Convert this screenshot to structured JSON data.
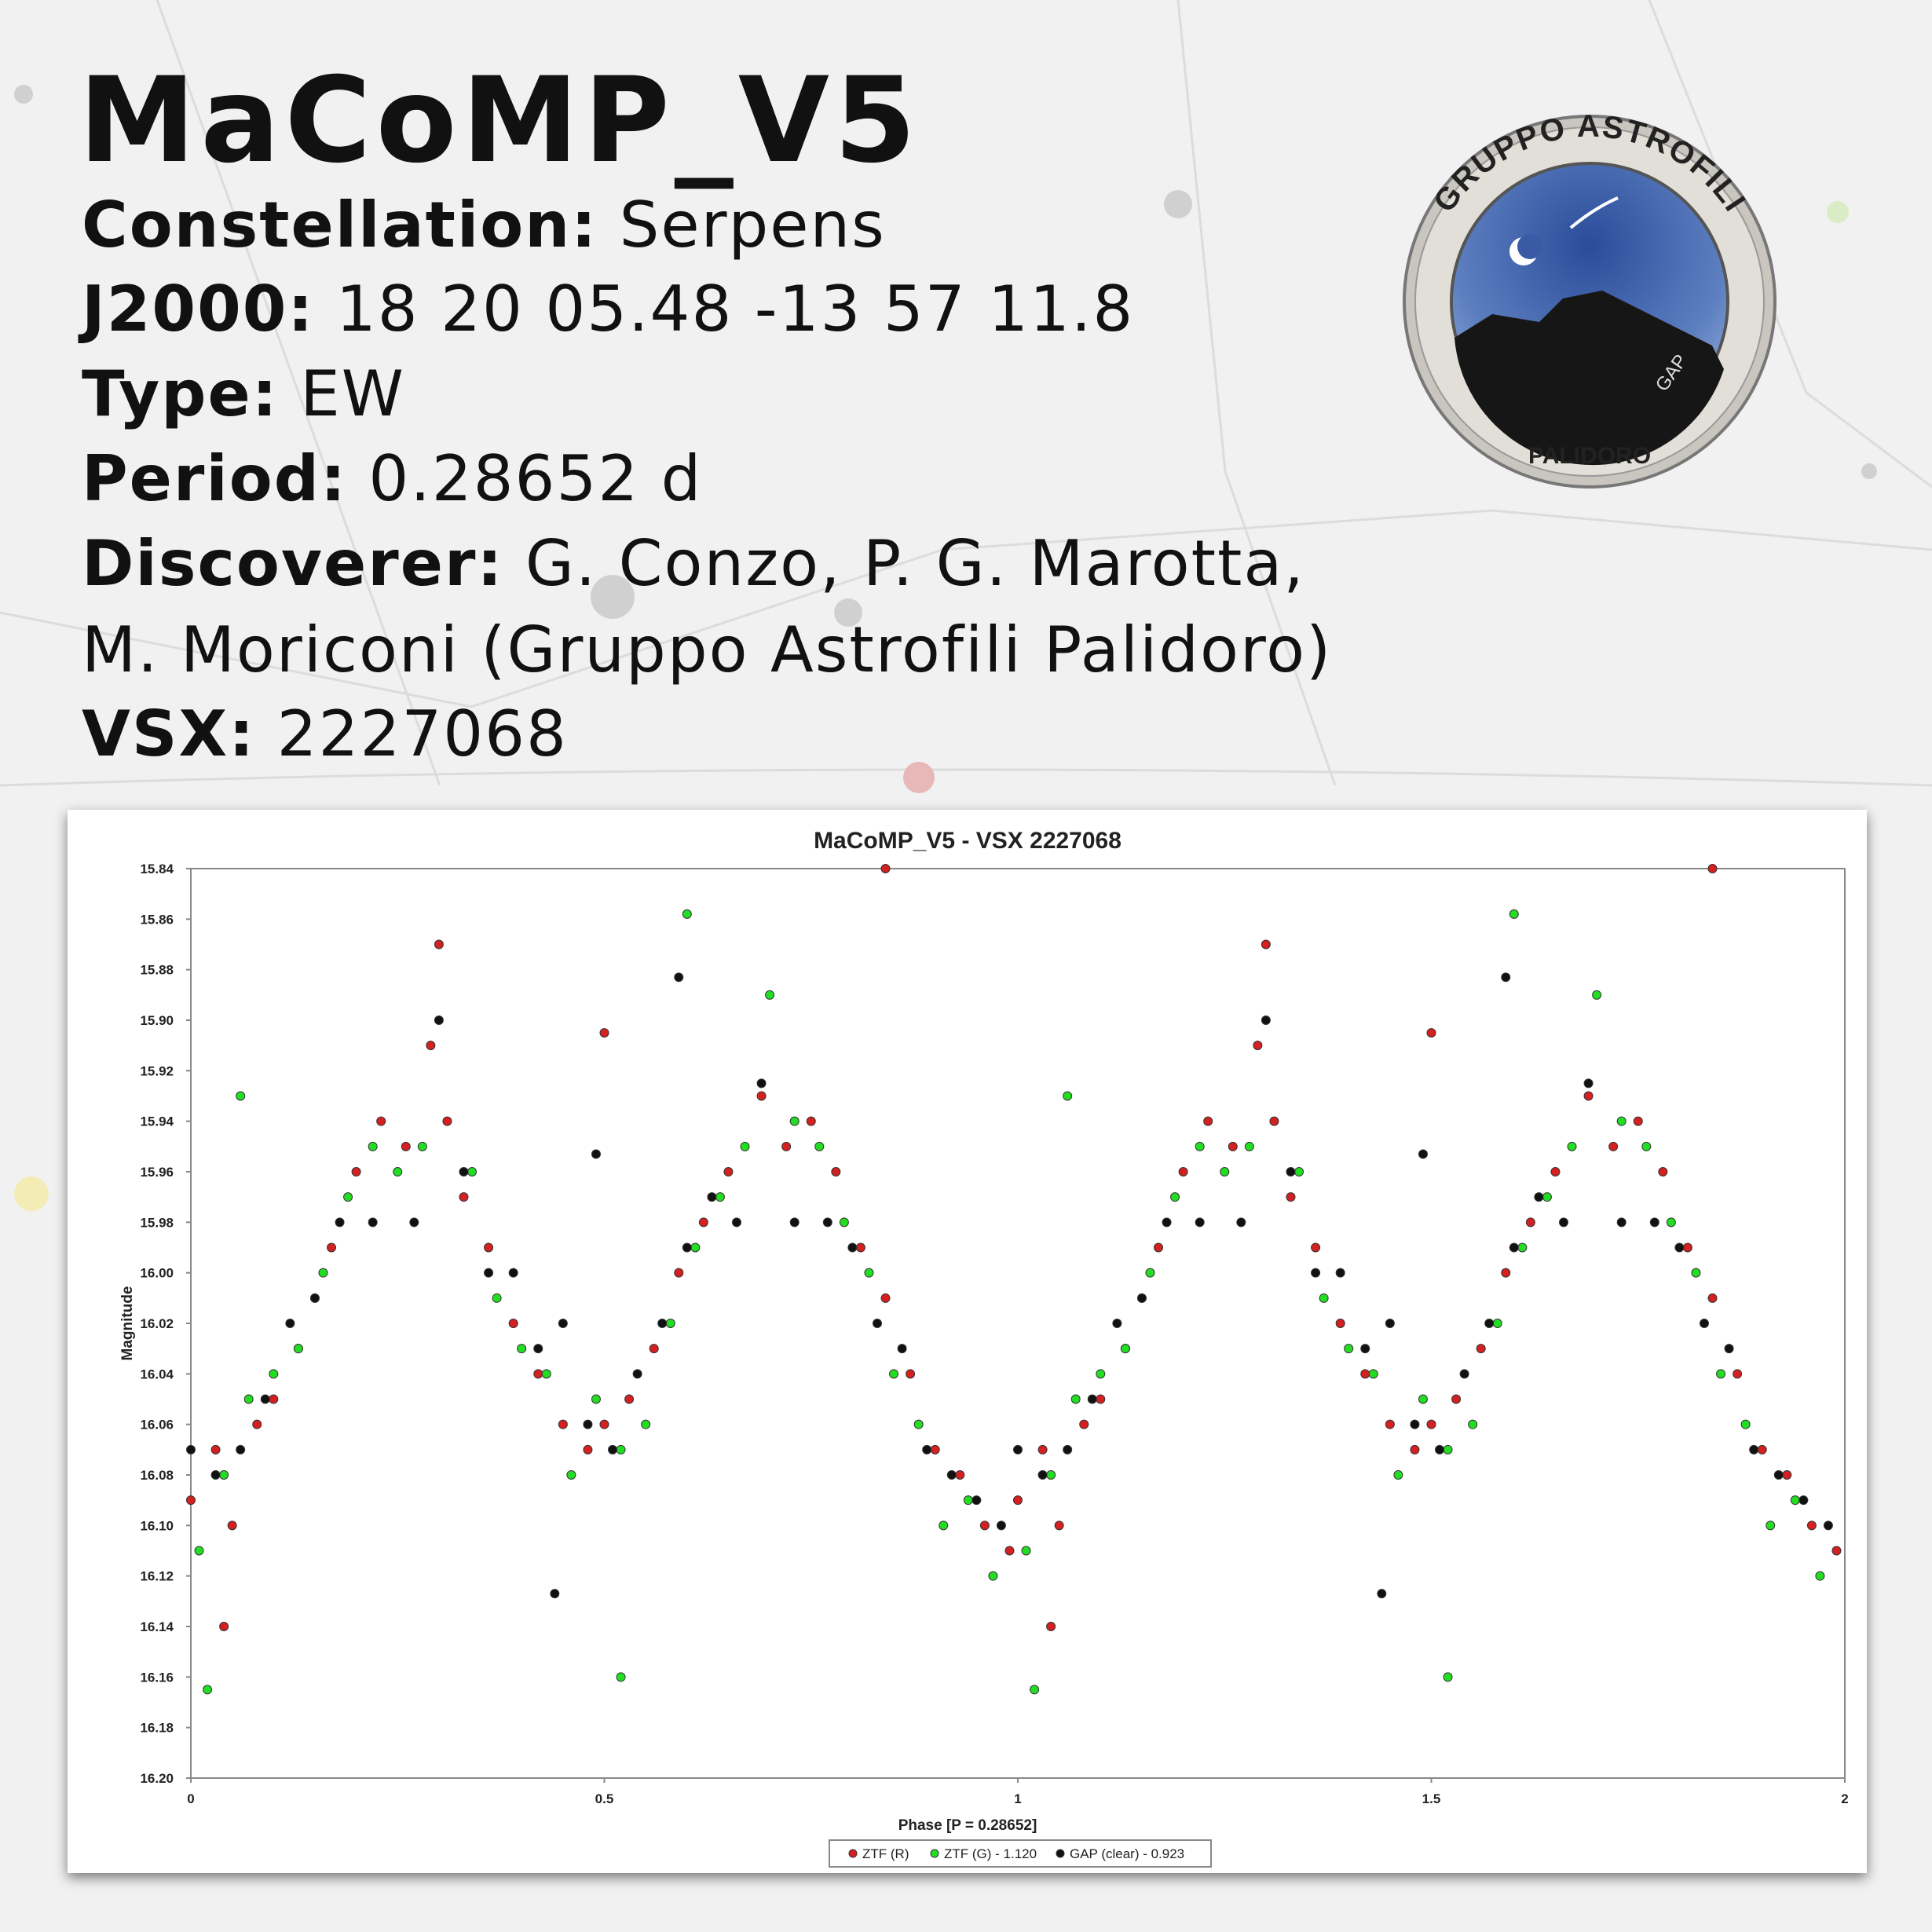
{
  "header": {
    "title": "MaCoMP_V5",
    "lines": [
      {
        "label": "Constellation:",
        "value": "Serpens"
      },
      {
        "label": "J2000:",
        "value": "18 20 05.48 -13 57 11.8"
      },
      {
        "label": "Type:",
        "value": "EW"
      },
      {
        "label": "Period:",
        "value": "0.28652 d"
      },
      {
        "label": "Discoverer:",
        "value": "G. Conzo, P. G. Marotta,"
      },
      {
        "value": "M. Moriconi (Gruppo Astrofili Palidoro)"
      },
      {
        "label": "VSX:",
        "value": "2227068"
      }
    ]
  },
  "logo": {
    "top": "GRUPPO ASTROFILI",
    "bottom": "PALIDORO",
    "mark": "GAP"
  },
  "chart_data": {
    "type": "scatter",
    "title": "MaCoMP_V5 - VSX 2227068",
    "x_label": "Phase [P = 0.28652]",
    "y_label": "Magnitude",
    "xlim": [
      0,
      2
    ],
    "xticks": [
      0,
      0.5,
      1,
      1.5,
      2
    ],
    "ylim": [
      16.2,
      15.84
    ],
    "yticks": [
      15.84,
      15.86,
      15.88,
      {
        "value": 15.9,
        "label": "15.90"
      },
      15.92,
      15.94,
      15.96,
      15.98,
      {
        "value": 16.0,
        "label": "16.00"
      },
      16.02,
      16.04,
      16.06,
      16.08,
      {
        "value": 16.1,
        "label": "16.10"
      },
      16.12,
      16.14,
      16.16,
      16.18,
      {
        "value": 16.2,
        "label": "16.20"
      }
    ],
    "legend": "bottom",
    "series": [
      {
        "name": "ZTF (R)",
        "color": "#d42020",
        "x": [
          0.0,
          0.03,
          0.05,
          0.08,
          0.1,
          0.13,
          0.15,
          0.17,
          0.2,
          0.23,
          0.26,
          0.29,
          0.31,
          0.33,
          0.36,
          0.39,
          0.42,
          0.45,
          0.48,
          0.5,
          0.53,
          0.56,
          0.59,
          0.62,
          0.65,
          0.69,
          0.72,
          0.75,
          0.78,
          0.81,
          0.84,
          0.87,
          0.9,
          0.93,
          0.96,
          0.99,
          0.3,
          0.5,
          0.84,
          0.04,
          1.0,
          1.03,
          1.05,
          1.08,
          1.1,
          1.13,
          1.15,
          1.17,
          1.2,
          1.23,
          1.26,
          1.29,
          1.31,
          1.33,
          1.36,
          1.39,
          1.42,
          1.45,
          1.48,
          1.5,
          1.53,
          1.56,
          1.59,
          1.62,
          1.65,
          1.69,
          1.72,
          1.75,
          1.78,
          1.81,
          1.84,
          1.87,
          1.9,
          1.93,
          1.96,
          1.99,
          1.3,
          1.5,
          1.84,
          1.04
        ],
        "values": [
          16.09,
          16.07,
          16.1,
          16.06,
          16.05,
          16.03,
          16.01,
          15.99,
          15.96,
          15.94,
          15.95,
          15.91,
          15.94,
          15.97,
          15.99,
          16.02,
          16.04,
          16.06,
          16.07,
          16.06,
          16.05,
          16.03,
          16.0,
          15.98,
          15.96,
          15.93,
          15.95,
          15.94,
          15.96,
          15.99,
          16.01,
          16.04,
          16.07,
          16.08,
          16.1,
          16.11,
          15.87,
          15.905,
          15.84,
          16.14,
          16.09,
          16.07,
          16.1,
          16.06,
          16.05,
          16.03,
          16.01,
          15.99,
          15.96,
          15.94,
          15.95,
          15.91,
          15.94,
          15.97,
          15.99,
          16.02,
          16.04,
          16.06,
          16.07,
          16.06,
          16.05,
          16.03,
          16.0,
          15.98,
          15.96,
          15.93,
          15.95,
          15.94,
          15.96,
          15.99,
          16.01,
          16.04,
          16.07,
          16.08,
          16.1,
          16.11,
          15.87,
          15.905,
          15.84,
          16.14
        ]
      },
      {
        "name": "ZTF (G) - 1.120",
        "color": "#22dd22",
        "x": [
          0.01,
          0.04,
          0.07,
          0.1,
          0.13,
          0.16,
          0.19,
          0.22,
          0.25,
          0.28,
          0.34,
          0.37,
          0.4,
          0.43,
          0.46,
          0.49,
          0.52,
          0.55,
          0.58,
          0.61,
          0.64,
          0.67,
          0.7,
          0.73,
          0.76,
          0.79,
          0.82,
          0.85,
          0.88,
          0.91,
          0.94,
          0.97,
          0.6,
          0.02,
          0.52,
          0.06,
          1.01,
          1.04,
          1.07,
          1.1,
          1.13,
          1.16,
          1.19,
          1.22,
          1.25,
          1.28,
          1.34,
          1.37,
          1.4,
          1.43,
          1.46,
          1.49,
          1.52,
          1.55,
          1.58,
          1.61,
          1.64,
          1.67,
          1.7,
          1.73,
          1.76,
          1.79,
          1.82,
          1.85,
          1.88,
          1.91,
          1.94,
          1.97,
          1.6,
          1.02,
          1.52,
          1.06
        ],
        "values": [
          16.11,
          16.08,
          16.05,
          16.04,
          16.03,
          16.0,
          15.97,
          15.95,
          15.96,
          15.95,
          15.96,
          16.01,
          16.03,
          16.04,
          16.08,
          16.05,
          16.07,
          16.06,
          16.02,
          15.99,
          15.97,
          15.95,
          15.89,
          15.94,
          15.95,
          15.98,
          16.0,
          16.04,
          16.06,
          16.1,
          16.09,
          16.12,
          15.858,
          16.165,
          16.16,
          15.93,
          16.11,
          16.08,
          16.05,
          16.04,
          16.03,
          16.0,
          15.97,
          15.95,
          15.96,
          15.95,
          15.96,
          16.01,
          16.03,
          16.04,
          16.08,
          16.05,
          16.07,
          16.06,
          16.02,
          15.99,
          15.97,
          15.95,
          15.89,
          15.94,
          15.95,
          15.98,
          16.0,
          16.04,
          16.06,
          16.1,
          16.09,
          16.12,
          15.858,
          16.165,
          16.16,
          15.93
        ]
      },
      {
        "name": "GAP (clear) - 0.923",
        "color": "#111111",
        "x": [
          0.0,
          0.03,
          0.06,
          0.09,
          0.12,
          0.15,
          0.18,
          0.22,
          0.27,
          0.3,
          0.33,
          0.36,
          0.39,
          0.42,
          0.45,
          0.48,
          0.51,
          0.54,
          0.57,
          0.6,
          0.63,
          0.66,
          0.69,
          0.73,
          0.77,
          0.8,
          0.83,
          0.86,
          0.89,
          0.92,
          0.95,
          0.98,
          0.59,
          0.44,
          0.49,
          1.0,
          1.03,
          1.06,
          1.09,
          1.12,
          1.15,
          1.18,
          1.22,
          1.27,
          1.3,
          1.33,
          1.36,
          1.39,
          1.42,
          1.45,
          1.48,
          1.51,
          1.54,
          1.57,
          1.6,
          1.63,
          1.66,
          1.69,
          1.73,
          1.77,
          1.8,
          1.83,
          1.86,
          1.89,
          1.92,
          1.95,
          1.98,
          1.59,
          1.44,
          1.49
        ],
        "values": [
          16.07,
          16.08,
          16.07,
          16.05,
          16.02,
          16.01,
          15.98,
          15.98,
          15.98,
          15.9,
          15.96,
          16.0,
          16.0,
          16.03,
          16.02,
          16.06,
          16.07,
          16.04,
          16.02,
          15.99,
          15.97,
          15.98,
          15.925,
          15.98,
          15.98,
          15.99,
          16.02,
          16.03,
          16.07,
          16.08,
          16.09,
          16.1,
          15.883,
          16.127,
          15.953,
          16.07,
          16.08,
          16.07,
          16.05,
          16.02,
          16.01,
          15.98,
          15.98,
          15.98,
          15.9,
          15.96,
          16.0,
          16.0,
          16.03,
          16.02,
          16.06,
          16.07,
          16.04,
          16.02,
          15.99,
          15.97,
          15.98,
          15.925,
          15.98,
          15.98,
          15.99,
          16.02,
          16.03,
          16.07,
          16.08,
          16.09,
          16.1,
          15.883,
          16.127,
          15.953
        ]
      }
    ]
  }
}
